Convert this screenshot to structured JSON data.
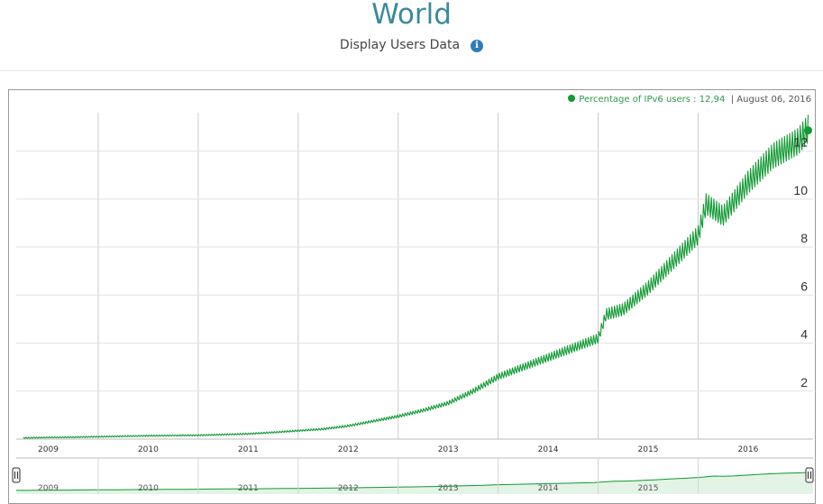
{
  "header": {
    "title": "World",
    "subtitle": "Display Users Data",
    "info_icon": "info-icon"
  },
  "legend": {
    "label": "Percentage of IPv6 users",
    "value": "12,94",
    "separator": "|",
    "date": "August 06, 2016"
  },
  "colors": {
    "line": "#119933",
    "grid": "#cccccc",
    "navigator_fill": "#e3f3e6"
  },
  "chart_data": {
    "type": "line",
    "title": "World",
    "series": [
      {
        "name": "Percentage of IPv6 users",
        "points": [
          [
            2008.75,
            0.05
          ],
          [
            2009.0,
            0.07
          ],
          [
            2009.25,
            0.08
          ],
          [
            2009.5,
            0.1
          ],
          [
            2009.75,
            0.12
          ],
          [
            2010.0,
            0.14
          ],
          [
            2010.25,
            0.15
          ],
          [
            2010.5,
            0.16
          ],
          [
            2010.75,
            0.19
          ],
          [
            2011.0,
            0.22
          ],
          [
            2011.25,
            0.28
          ],
          [
            2011.5,
            0.35
          ],
          [
            2011.75,
            0.42
          ],
          [
            2012.0,
            0.55
          ],
          [
            2012.25,
            0.75
          ],
          [
            2012.5,
            0.95
          ],
          [
            2012.75,
            1.2
          ],
          [
            2013.0,
            1.5
          ],
          [
            2013.25,
            2.0
          ],
          [
            2013.5,
            2.6
          ],
          [
            2013.75,
            3.0
          ],
          [
            2014.0,
            3.4
          ],
          [
            2014.25,
            3.8
          ],
          [
            2014.5,
            4.2
          ],
          [
            2014.58,
            5.2
          ],
          [
            2014.75,
            5.4
          ],
          [
            2015.0,
            6.3
          ],
          [
            2015.25,
            7.4
          ],
          [
            2015.5,
            8.5
          ],
          [
            2015.58,
            9.8
          ],
          [
            2015.75,
            9.3
          ],
          [
            2016.0,
            10.7
          ],
          [
            2016.25,
            11.8
          ],
          [
            2016.5,
            12.4
          ],
          [
            2016.6,
            12.94
          ]
        ]
      }
    ],
    "x_ticks": [
      "2009",
      "2010",
      "2011",
      "2012",
      "2013",
      "2014",
      "2015",
      "2016"
    ],
    "x_tick_values": [
      2009,
      2010,
      2011,
      2012,
      2013,
      2014,
      2015,
      2016
    ],
    "y_ticks": [
      "2",
      "4",
      "6",
      "8",
      "10",
      "12"
    ],
    "y_tick_values": [
      2,
      4,
      6,
      8,
      10,
      12
    ],
    "xlim": [
      2008.68,
      2016.65
    ],
    "ylim": [
      0,
      13.6
    ],
    "navigator_labels": [
      "2009",
      "2010",
      "2011",
      "2012",
      "2013",
      "2014",
      "2015"
    ],
    "navigator_label_values": [
      2009,
      2010,
      2011,
      2012,
      2013,
      2014,
      2015
    ],
    "grid": true,
    "legend_position": "top-right"
  }
}
